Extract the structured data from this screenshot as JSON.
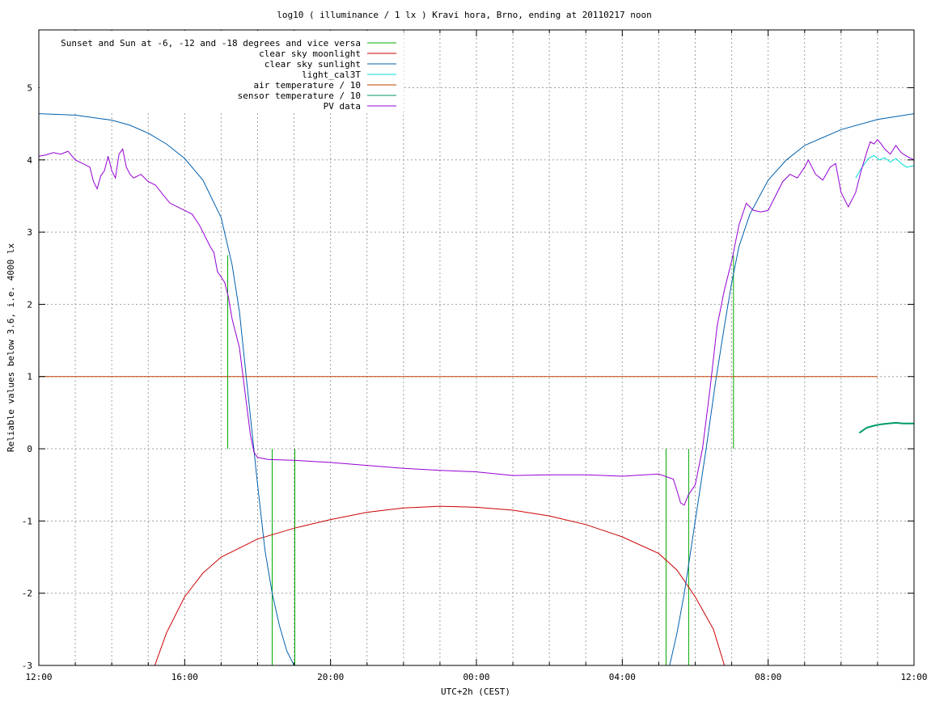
{
  "chart_data": {
    "type": "line",
    "title": "log10 ( illuminance / 1 lx ) Kravi hora, Brno, ending at 20110217 noon",
    "xlabel": "UTC+2h (CEST)",
    "ylabel": "Reliable values below 3.6, i.e. 4000 lx",
    "x_unit": "hours since 12:00 (UTC+2h)",
    "xlim": [
      0,
      24
    ],
    "ylim": [
      -3,
      5.8
    ],
    "x_ticks": [
      {
        "x": 0,
        "label": "12:00"
      },
      {
        "x": 4,
        "label": "16:00"
      },
      {
        "x": 8,
        "label": "20:00"
      },
      {
        "x": 12,
        "label": "00:00"
      },
      {
        "x": 16,
        "label": "04:00"
      },
      {
        "x": 20,
        "label": "08:00"
      },
      {
        "x": 24,
        "label": "12:00"
      }
    ],
    "y_ticks": [
      {
        "y": -3,
        "label": "-3"
      },
      {
        "y": -2,
        "label": "-2"
      },
      {
        "y": -1,
        "label": "-1"
      },
      {
        "y": 0,
        "label": "0"
      },
      {
        "y": 1,
        "label": "1"
      },
      {
        "y": 2,
        "label": "2"
      },
      {
        "y": 3,
        "label": "3"
      },
      {
        "y": 4,
        "label": "4"
      },
      {
        "y": 5,
        "label": "5"
      }
    ],
    "grid": true,
    "legend_position": "top-left",
    "series": [
      {
        "name": "Sunset and Sun at -6, -12 and -18 degrees and vice versa",
        "color": "#00aa00",
        "kind": "vlines",
        "lines": [
          {
            "x": 5.18,
            "y1": 0,
            "y2": 2.68
          },
          {
            "x": 6.4,
            "y1": 0,
            "y2": -3
          },
          {
            "x": 7.02,
            "y1": 0,
            "y2": -3
          },
          {
            "x": 17.2,
            "y1": 0,
            "y2": -3
          },
          {
            "x": 17.82,
            "y1": 0,
            "y2": -3
          },
          {
            "x": 19.05,
            "y1": 0,
            "y2": 2.68
          }
        ]
      },
      {
        "name": "clear sky moonlight",
        "color": "#cc0000",
        "kind": "line",
        "points": [
          [
            3.18,
            -3.0
          ],
          [
            3.5,
            -2.55
          ],
          [
            4.0,
            -2.05
          ],
          [
            4.5,
            -1.72
          ],
          [
            5.0,
            -1.5
          ],
          [
            6.0,
            -1.25
          ],
          [
            7.0,
            -1.1
          ],
          [
            8.0,
            -0.98
          ],
          [
            9.0,
            -0.88
          ],
          [
            10.0,
            -0.82
          ],
          [
            11.0,
            -0.795
          ],
          [
            12.0,
            -0.81
          ],
          [
            13.0,
            -0.85
          ],
          [
            14.0,
            -0.93
          ],
          [
            15.0,
            -1.05
          ],
          [
            16.0,
            -1.22
          ],
          [
            17.0,
            -1.45
          ],
          [
            17.5,
            -1.68
          ],
          [
            18.0,
            -2.05
          ],
          [
            18.5,
            -2.5
          ],
          [
            18.8,
            -3.0
          ]
        ]
      },
      {
        "name": "clear sky sunlight",
        "color": "#0060ad",
        "kind": "line",
        "points": [
          [
            0,
            4.64
          ],
          [
            1,
            4.62
          ],
          [
            2,
            4.55
          ],
          [
            2.5,
            4.48
          ],
          [
            3,
            4.37
          ],
          [
            3.5,
            4.22
          ],
          [
            4,
            4.02
          ],
          [
            4.5,
            3.72
          ],
          [
            5,
            3.2
          ],
          [
            5.3,
            2.55
          ],
          [
            5.5,
            1.9
          ],
          [
            5.75,
            0.7
          ],
          [
            6.0,
            -0.5
          ],
          [
            6.2,
            -1.4
          ],
          [
            6.4,
            -2.0
          ],
          [
            6.6,
            -2.45
          ],
          [
            6.8,
            -2.8
          ],
          [
            7.0,
            -3.0
          ],
          [
            17.3,
            -3.0
          ],
          [
            17.5,
            -2.55
          ],
          [
            17.7,
            -2.0
          ],
          [
            18.0,
            -1.0
          ],
          [
            18.3,
            0.0
          ],
          [
            18.55,
            0.9
          ],
          [
            18.8,
            1.7
          ],
          [
            19.0,
            2.3
          ],
          [
            19.2,
            2.8
          ],
          [
            19.5,
            3.25
          ],
          [
            20.0,
            3.72
          ],
          [
            20.5,
            4.0
          ],
          [
            21.0,
            4.2
          ],
          [
            22.0,
            4.42
          ],
          [
            23.0,
            4.56
          ],
          [
            24.0,
            4.64
          ]
        ]
      },
      {
        "name": "light_cal3T",
        "color": "#00dddd",
        "kind": "line",
        "points": [
          [
            22.4,
            3.75
          ],
          [
            22.55,
            3.88
          ],
          [
            22.75,
            4.02
          ],
          [
            22.9,
            4.06
          ],
          [
            23.05,
            4.0
          ],
          [
            23.2,
            4.03
          ],
          [
            23.35,
            3.97
          ],
          [
            23.5,
            4.02
          ],
          [
            23.65,
            3.95
          ],
          [
            23.8,
            3.9
          ],
          [
            24.0,
            3.92
          ]
        ]
      },
      {
        "name": "air temperature / 10",
        "color": "#c04000",
        "kind": "line",
        "points": [
          [
            0,
            1.0
          ],
          [
            23.0,
            1.0
          ]
        ]
      },
      {
        "name": "sensor temperature / 10",
        "color": "#009a6a",
        "kind": "line",
        "points": [
          [
            22.5,
            0.22
          ],
          [
            22.7,
            0.29
          ],
          [
            22.9,
            0.32
          ],
          [
            23.1,
            0.34
          ],
          [
            23.3,
            0.35
          ],
          [
            23.5,
            0.36
          ],
          [
            23.7,
            0.35
          ],
          [
            24.0,
            0.35
          ]
        ]
      },
      {
        "name": "PV data",
        "color": "#9400d3",
        "kind": "line",
        "points": [
          [
            0,
            4.05
          ],
          [
            0.2,
            4.07
          ],
          [
            0.4,
            4.1
          ],
          [
            0.6,
            4.08
          ],
          [
            0.8,
            4.12
          ],
          [
            1.0,
            4.0
          ],
          [
            1.2,
            3.95
          ],
          [
            1.4,
            3.9
          ],
          [
            1.5,
            3.7
          ],
          [
            1.6,
            3.6
          ],
          [
            1.7,
            3.78
          ],
          [
            1.8,
            3.85
          ],
          [
            1.9,
            4.05
          ],
          [
            2.0,
            3.85
          ],
          [
            2.1,
            3.75
          ],
          [
            2.2,
            4.08
          ],
          [
            2.3,
            4.15
          ],
          [
            2.4,
            3.9
          ],
          [
            2.5,
            3.8
          ],
          [
            2.6,
            3.75
          ],
          [
            2.8,
            3.8
          ],
          [
            3.0,
            3.7
          ],
          [
            3.2,
            3.65
          ],
          [
            3.4,
            3.52
          ],
          [
            3.6,
            3.4
          ],
          [
            3.8,
            3.35
          ],
          [
            4.0,
            3.3
          ],
          [
            4.2,
            3.25
          ],
          [
            4.4,
            3.1
          ],
          [
            4.5,
            3.0
          ],
          [
            4.6,
            2.9
          ],
          [
            4.7,
            2.8
          ],
          [
            4.8,
            2.72
          ],
          [
            4.9,
            2.45
          ],
          [
            5.0,
            2.38
          ],
          [
            5.1,
            2.3
          ],
          [
            5.2,
            2.1
          ],
          [
            5.3,
            1.8
          ],
          [
            5.4,
            1.6
          ],
          [
            5.5,
            1.4
          ],
          [
            5.6,
            1.0
          ],
          [
            5.7,
            0.6
          ],
          [
            5.8,
            0.2
          ],
          [
            5.9,
            -0.05
          ],
          [
            6.0,
            -0.12
          ],
          [
            6.3,
            -0.15
          ],
          [
            7.0,
            -0.16
          ],
          [
            8.0,
            -0.19
          ],
          [
            9.0,
            -0.23
          ],
          [
            10.0,
            -0.27
          ],
          [
            11.0,
            -0.3
          ],
          [
            12.0,
            -0.32
          ],
          [
            13.0,
            -0.37
          ],
          [
            14.0,
            -0.36
          ],
          [
            15.0,
            -0.36
          ],
          [
            16.0,
            -0.38
          ],
          [
            17.0,
            -0.35
          ],
          [
            17.4,
            -0.42
          ],
          [
            17.5,
            -0.58
          ],
          [
            17.6,
            -0.75
          ],
          [
            17.7,
            -0.78
          ],
          [
            17.8,
            -0.65
          ],
          [
            18.0,
            -0.5
          ],
          [
            18.2,
            0.0
          ],
          [
            18.4,
            0.8
          ],
          [
            18.6,
            1.7
          ],
          [
            18.8,
            2.2
          ],
          [
            19.0,
            2.6
          ],
          [
            19.2,
            3.1
          ],
          [
            19.4,
            3.4
          ],
          [
            19.6,
            3.3
          ],
          [
            19.8,
            3.28
          ],
          [
            20.0,
            3.3
          ],
          [
            20.2,
            3.5
          ],
          [
            20.4,
            3.7
          ],
          [
            20.6,
            3.8
          ],
          [
            20.8,
            3.75
          ],
          [
            21.0,
            3.9
          ],
          [
            21.1,
            4.0
          ],
          [
            21.3,
            3.8
          ],
          [
            21.5,
            3.72
          ],
          [
            21.7,
            3.9
          ],
          [
            21.85,
            3.95
          ],
          [
            22.0,
            3.55
          ],
          [
            22.2,
            3.35
          ],
          [
            22.4,
            3.55
          ],
          [
            22.55,
            3.85
          ],
          [
            22.7,
            4.1
          ],
          [
            22.8,
            4.25
          ],
          [
            22.9,
            4.22
          ],
          [
            23.0,
            4.28
          ],
          [
            23.1,
            4.22
          ],
          [
            23.2,
            4.15
          ],
          [
            23.35,
            4.08
          ],
          [
            23.5,
            4.2
          ],
          [
            23.65,
            4.1
          ],
          [
            23.8,
            4.05
          ],
          [
            24.0,
            4.0
          ]
        ]
      }
    ]
  }
}
